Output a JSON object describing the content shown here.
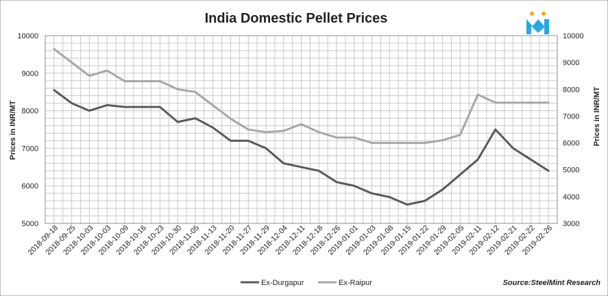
{
  "chart_data": {
    "type": "line",
    "title": "India Domestic Pellet Prices",
    "ylabel": "Prices in INR/MT",
    "ylabel_right": "Prices in INR/MT",
    "ylim": [
      5000,
      10000
    ],
    "ylim_right": [
      3000,
      10000
    ],
    "yticks": [
      "5000",
      "6000",
      "7000",
      "8000",
      "9000",
      "10000"
    ],
    "yticks_right": [
      "3000",
      "4000",
      "5000",
      "6000",
      "7000",
      "8000",
      "9000",
      "10000"
    ],
    "grid": true,
    "legend_position": "bottom",
    "x": [
      "2018-09-18",
      "2018-09-25",
      "2018-10-03",
      "2018-10-03",
      "2018-10-09",
      "2018-10-16",
      "2018-10-23",
      "2018-10-30",
      "2018-11-05",
      "2018-11-13",
      "2018-11-20",
      "2018-11-27",
      "2018-11-29",
      "2018-12-04",
      "2018-12-11",
      "2018-12-18",
      "2018-12-26",
      "2019-01-01",
      "2019-01-03",
      "2019-01-08",
      "2019-01-15",
      "2019-01-22",
      "2019-01-29",
      "2019-02-05",
      "2019-02-11",
      "2019-02-12",
      "2019-02-21",
      "2019-02-22",
      "2019-02-26"
    ],
    "series": [
      {
        "name": "Ex-Durgapur",
        "axis": "left",
        "color": "#595959",
        "values": [
          8550,
          8200,
          8000,
          8150,
          8100,
          8100,
          8100,
          7700,
          7800,
          7550,
          7200,
          7200,
          7000,
          6600,
          6500,
          6400,
          6100,
          6000,
          5800,
          5700,
          5500,
          5600,
          5900,
          6300,
          6700,
          7500,
          7000,
          6700,
          6400
        ]
      },
      {
        "name": "Ex-Raipur",
        "axis": "right",
        "color": "#a6a6a6",
        "values": [
          9500,
          9000,
          8500,
          8700,
          8300,
          8300,
          8300,
          8000,
          7900,
          7400,
          6900,
          6500,
          6400,
          6450,
          6700,
          6400,
          6200,
          6200,
          6000,
          6000,
          6000,
          6000,
          6100,
          6300,
          7800,
          7500,
          7500,
          7500,
          7500
        ]
      }
    ]
  },
  "source": "Source:SteelMint Research",
  "colors": {
    "grid": "#c8c8c8",
    "logo_blue": "#29a8e0",
    "logo_orange": "#f5a623"
  },
  "logo": {
    "icon": "steelmint-logo-icon"
  }
}
